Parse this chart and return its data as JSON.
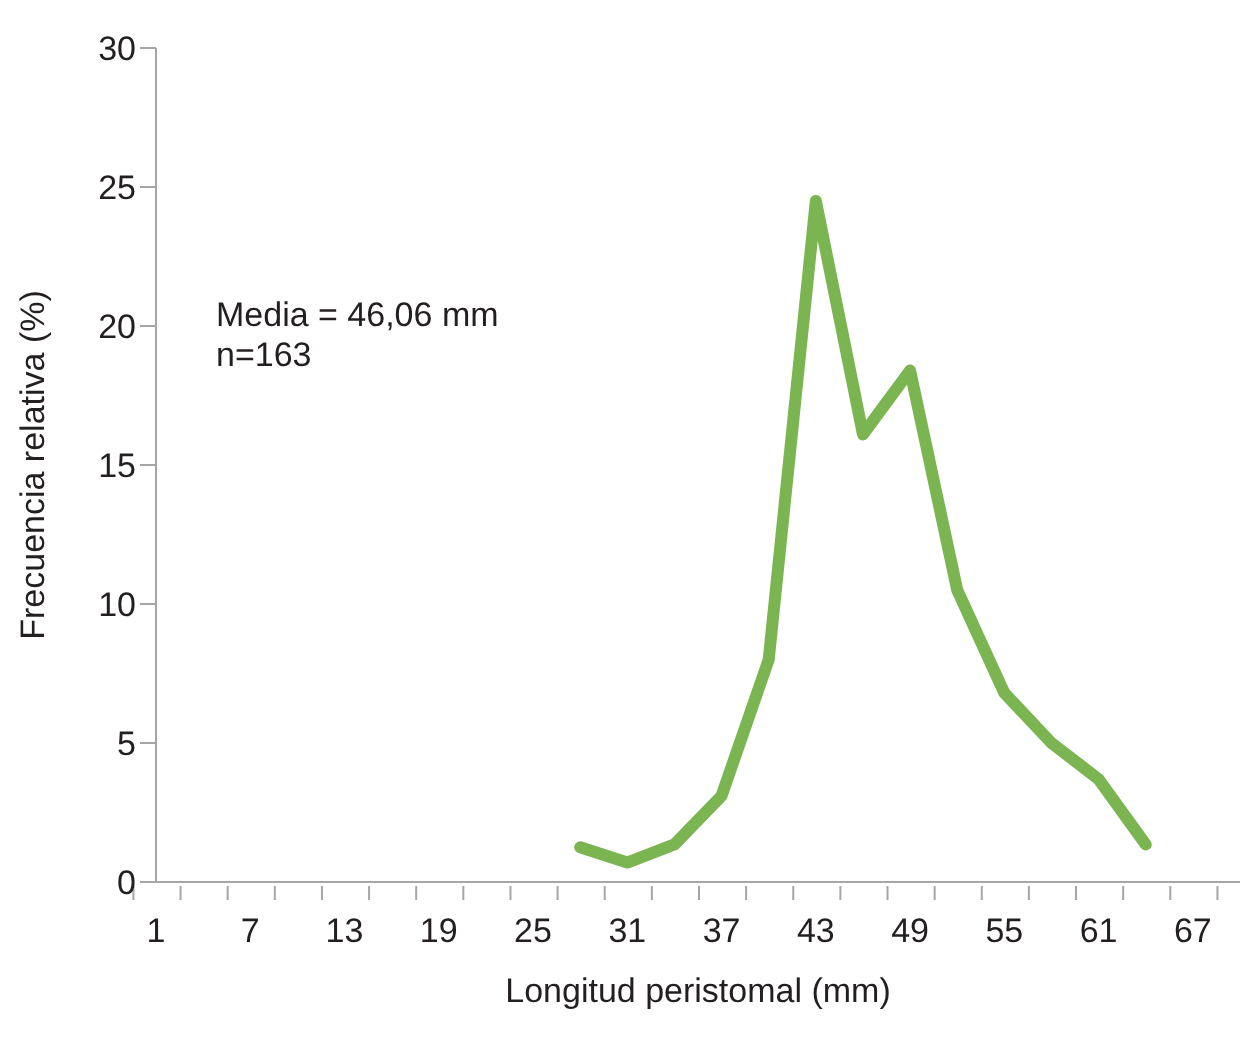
{
  "chart_data": {
    "type": "line",
    "xlabel": "Longitud peristomal (mm)",
    "ylabel": "Frecuencia relativa (%)",
    "categories": [
      "1",
      null,
      "7",
      null,
      "13",
      null,
      "19",
      null,
      "25",
      null,
      "31",
      null,
      "37",
      null,
      "43",
      null,
      "49",
      null,
      "55",
      null,
      "61",
      null,
      "67",
      null
    ],
    "series": [
      {
        "color": "#7ab552",
        "values": [
          null,
          null,
          null,
          null,
          null,
          null,
          null,
          null,
          null,
          1.25,
          0.7,
          1.35,
          3.1,
          8.0,
          24.5,
          16.1,
          18.4,
          10.5,
          6.8,
          5.0,
          3.7,
          1.35,
          null,
          null
        ]
      }
    ],
    "ylim": [
      0,
      30
    ],
    "yticks": [
      0,
      5,
      10,
      15,
      20,
      25,
      30
    ],
    "grid": false,
    "legend": false,
    "marker": "none",
    "line_style": "solid",
    "annotations": [
      "Media = 46,06 mm",
      "n=163"
    ]
  }
}
